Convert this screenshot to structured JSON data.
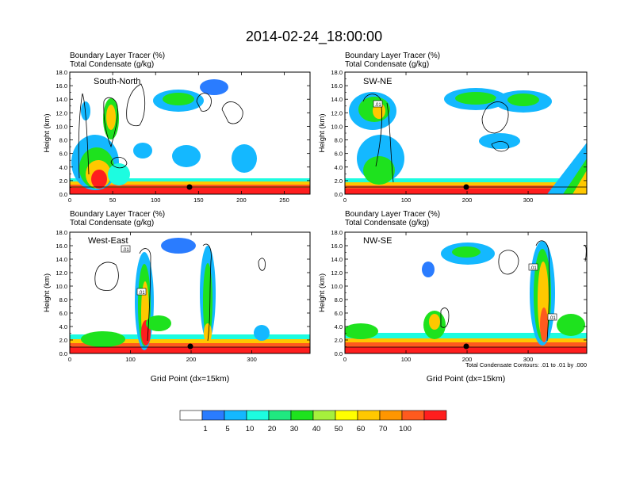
{
  "figure": {
    "title": "2014-02-24_18:00:00",
    "panel_line1": "Boundary Layer Tracer   (%)",
    "panel_line2": "Total Condensate   (g/kg)",
    "contour_note": "Total Condensate Contours: .01 to .01 by .000",
    "contour_label": ".01"
  },
  "colorbar": {
    "colors": [
      "#ffffff",
      "#2a7cff",
      "#14b8ff",
      "#1dfce0",
      "#20e880",
      "#1ee21e",
      "#a6f03c",
      "#ffff00",
      "#ffc800",
      "#ff9600",
      "#ff5a1e",
      "#ff1e1e"
    ],
    "labels": [
      "1",
      "5",
      "10",
      "20",
      "30",
      "40",
      "50",
      "60",
      "70",
      "100"
    ]
  },
  "chart_data": [
    {
      "type": "heatmap",
      "title": "South-North",
      "xlabel": "",
      "ylabel": "Height (km)",
      "xlim": [
        0,
        280
      ],
      "ylim": [
        0,
        18
      ],
      "xticks": [
        "0",
        "50",
        "100",
        "150",
        "200",
        "250"
      ],
      "xtick_values": [
        0,
        50,
        100,
        150,
        200,
        250
      ],
      "yticks": [
        "0.0",
        "2.0",
        "4.0",
        "6.0",
        "8.0",
        "10.0",
        "12.0",
        "14.0",
        "16.0",
        "18.0"
      ],
      "marker": {
        "x": 140,
        "y": 1.0
      }
    },
    {
      "type": "heatmap",
      "title": "SW-NE",
      "xlabel": "",
      "ylabel": "Height (km)",
      "xlim": [
        0,
        396
      ],
      "ylim": [
        0,
        18
      ],
      "xticks": [
        "0",
        "100",
        "200",
        "300"
      ],
      "xtick_values": [
        0,
        100,
        200,
        300
      ],
      "yticks": [
        "0.0",
        "2.0",
        "4.0",
        "6.0",
        "8.0",
        "10.0",
        "12.0",
        "14.0",
        "16.0",
        "18.0"
      ],
      "marker": {
        "x": 198,
        "y": 1.0
      }
    },
    {
      "type": "heatmap",
      "title": "West-East",
      "xlabel": "Grid Point (dx=15km)",
      "ylabel": "Height (km)",
      "xlim": [
        0,
        396
      ],
      "ylim": [
        0,
        18
      ],
      "xticks": [
        "0",
        "100",
        "200",
        "300"
      ],
      "xtick_values": [
        0,
        100,
        200,
        300
      ],
      "yticks": [
        "0.0",
        "2.0",
        "4.0",
        "6.0",
        "8.0",
        "10.0",
        "12.0",
        "14.0",
        "16.0",
        "18.0"
      ],
      "marker": {
        "x": 198,
        "y": 1.0
      }
    },
    {
      "type": "heatmap",
      "title": "NW-SE",
      "xlabel": "Grid Point (dx=15km)",
      "ylabel": "Height (km)",
      "xlim": [
        0,
        396
      ],
      "ylim": [
        0,
        18
      ],
      "xticks": [
        "0",
        "100",
        "200",
        "300"
      ],
      "xtick_values": [
        0,
        100,
        200,
        300
      ],
      "yticks": [
        "0.0",
        "2.0",
        "4.0",
        "6.0",
        "8.0",
        "10.0",
        "12.0",
        "14.0",
        "16.0",
        "18.0"
      ],
      "marker": {
        "x": 198,
        "y": 1.0
      }
    }
  ]
}
